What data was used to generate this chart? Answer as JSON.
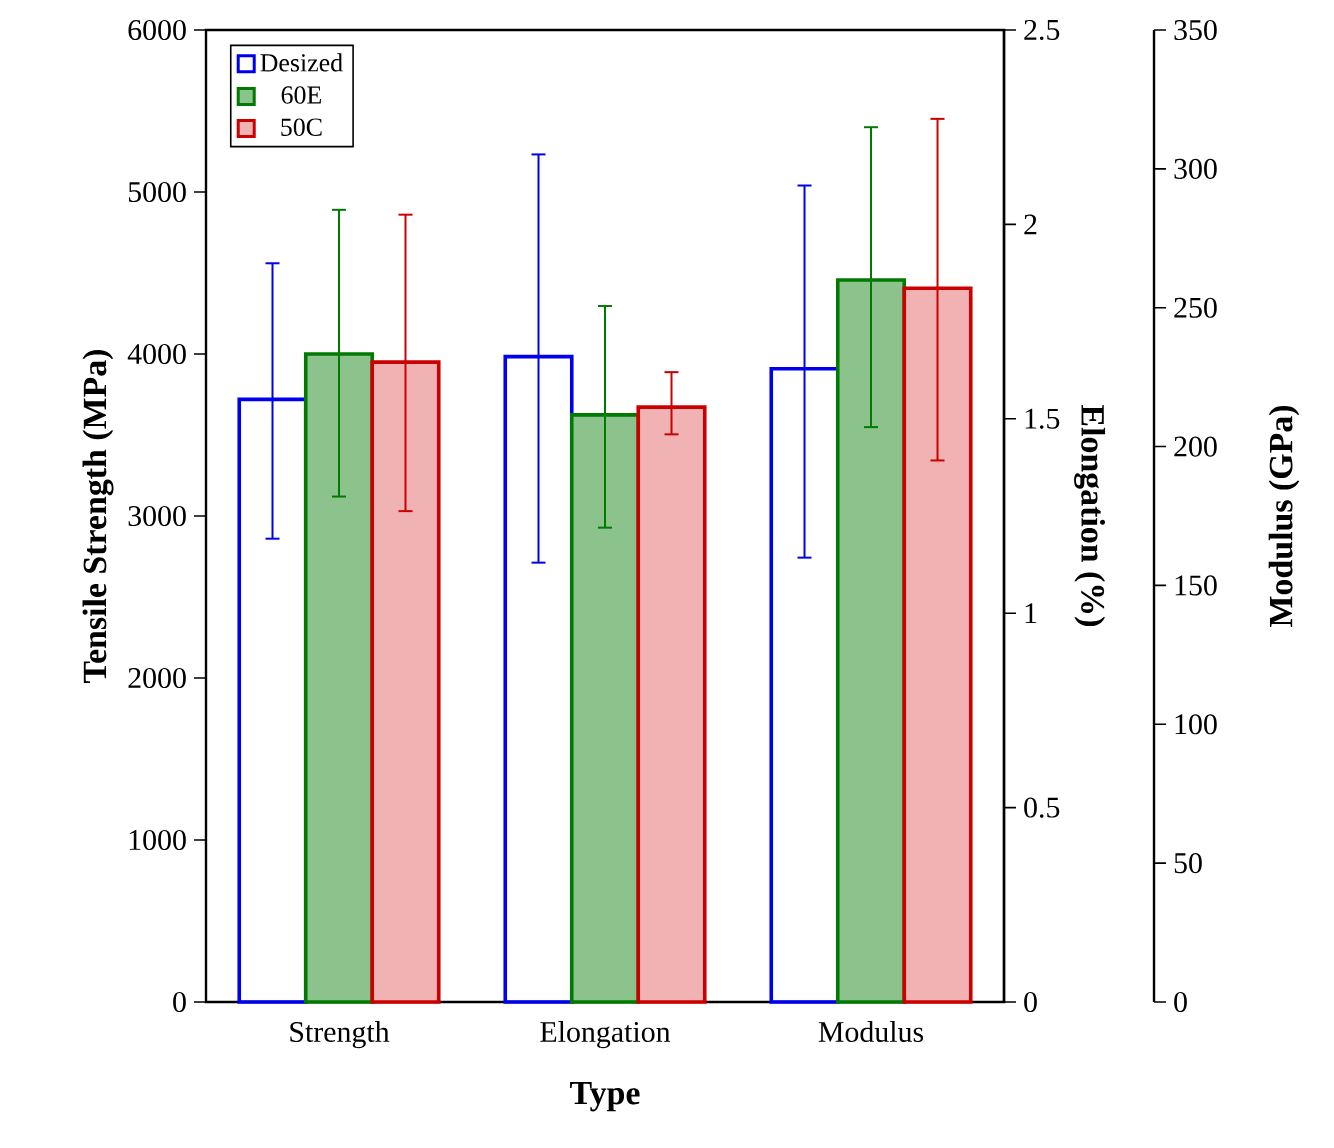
{
  "chart_data": {
    "type": "bar",
    "xlabel": "Type",
    "ylabel": "Tensile Strength (MPa)",
    "y2label": "Elongation (%)",
    "y3label": "Modulus (GPa)",
    "categories": [
      "Strength",
      "Elongation",
      "Modulus"
    ],
    "ylim": [
      0,
      6000
    ],
    "yticks": [
      0,
      1000,
      2000,
      3000,
      4000,
      5000,
      6000
    ],
    "y2lim": [
      0,
      2.5
    ],
    "y2ticks": [
      0,
      0.5,
      1,
      1.5,
      2,
      2.5
    ],
    "y3lim": [
      0,
      350
    ],
    "y3ticks": [
      0,
      50,
      100,
      150,
      200,
      250,
      300,
      350
    ],
    "legend": "top left",
    "series": [
      {
        "name": "Desized",
        "color": "#0000ee",
        "values": [
          3720,
          null,
          null
        ],
        "errors": [
          [
            2860,
            4560
          ],
          null,
          null
        ]
      },
      {
        "name": "60E",
        "color": "#007a00",
        "values": [
          4000,
          null,
          null
        ],
        "errors": [
          [
            3120,
            4890
          ],
          null,
          null
        ]
      },
      {
        "name": "50C",
        "color": "#cc0000",
        "values": [
          3950,
          null,
          null
        ],
        "errors": [
          [
            3030,
            4860
          ],
          null,
          null
        ]
      },
      {
        "color": "#0000ee",
        "axis": "y2",
        "values": [
          null,
          1.66,
          null
        ],
        "errors": [
          null,
          [
            1.13,
            2.18
          ],
          null
        ]
      },
      {
        "color": "#007a00",
        "axis": "y2",
        "values": [
          null,
          1.51,
          null
        ],
        "errors": [
          null,
          [
            1.22,
            1.79
          ],
          null
        ]
      },
      {
        "color": "#cc0000",
        "axis": "y2",
        "values": [
          null,
          1.53,
          null
        ],
        "errors": [
          null,
          [
            1.46,
            1.62
          ],
          null
        ]
      },
      {
        "color": "#0000ee",
        "axis": "y3",
        "values": [
          null,
          null,
          228
        ],
        "errors": [
          null,
          null,
          [
            160,
            294
          ]
        ]
      },
      {
        "color": "#007a00",
        "axis": "y3",
        "values": [
          null,
          null,
          260
        ],
        "errors": [
          null,
          null,
          [
            207,
            315
          ]
        ]
      },
      {
        "color": "#cc0000",
        "axis": "y3",
        "values": [
          null,
          null,
          257
        ],
        "errors": [
          null,
          null,
          [
            195,
            318
          ]
        ]
      }
    ]
  }
}
